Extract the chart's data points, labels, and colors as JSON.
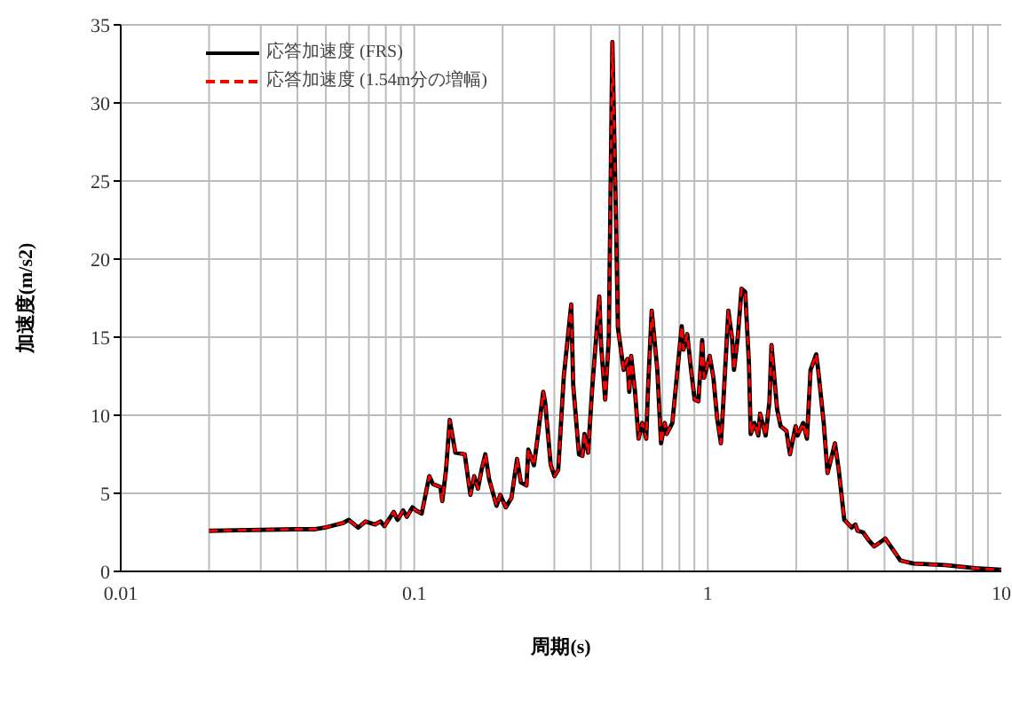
{
  "chart_data": {
    "type": "line",
    "xlabel": "周期(s)",
    "ylabel": "加速度(m/s2)",
    "log": "x",
    "grid": true,
    "legend": "top left",
    "marker": "none",
    "xlim": [
      0.01,
      10
    ],
    "xticks": [
      0.01,
      0.1,
      1,
      10
    ],
    "ylim": [
      0,
      35
    ],
    "yticks": [
      0,
      5,
      10,
      15,
      20,
      25,
      30,
      35
    ],
    "x": [
      0.02,
      0.0397,
      0.046,
      0.0495,
      0.0573,
      0.0598,
      0.0644,
      0.0683,
      0.0735,
      0.0768,
      0.0791,
      0.0851,
      0.0877,
      0.0916,
      0.0944,
      0.0986,
      0.1015,
      0.106,
      0.1125,
      0.1158,
      0.1228,
      0.1246,
      0.1283,
      0.1321,
      0.138,
      0.1486,
      0.1553,
      0.16,
      0.1648,
      0.1695,
      0.1746,
      0.1799,
      0.1907,
      0.1963,
      0.2051,
      0.2143,
      0.224,
      0.2307,
      0.2411,
      0.2447,
      0.2557,
      0.2633,
      0.275,
      0.2793,
      0.2917,
      0.3004,
      0.3093,
      0.3232,
      0.3426,
      0.348,
      0.364,
      0.374,
      0.38,
      0.391,
      0.403,
      0.427,
      0.433,
      0.447,
      0.46,
      0.473,
      0.487,
      0.494,
      0.517,
      0.532,
      0.54,
      0.548,
      0.565,
      0.581,
      0.598,
      0.617,
      0.625,
      0.644,
      0.673,
      0.693,
      0.714,
      0.724,
      0.757,
      0.78,
      0.815,
      0.826,
      0.851,
      0.877,
      0.902,
      0.929,
      0.957,
      0.971,
      1.015,
      1.045,
      1.076,
      1.108,
      1.124,
      1.175,
      1.21,
      1.228,
      1.265,
      1.303,
      1.341,
      1.381,
      1.4,
      1.442,
      1.486,
      1.507,
      1.574,
      1.622,
      1.648,
      1.722,
      1.77,
      1.853,
      1.905,
      1.991,
      2.023,
      2.113,
      2.177,
      2.239,
      2.34,
      2.377,
      2.483,
      2.558,
      2.63,
      2.711,
      2.793,
      2.917,
      3.09,
      3.184,
      3.236,
      3.381,
      3.532,
      3.69,
      4.027,
      4.529,
      5.02,
      6.44,
      8.15,
      10
    ],
    "series": [
      {
        "name": "応答加速度 (FRS)",
        "color": "#000000",
        "line_style": "solid",
        "values": [
          2.6,
          2.7,
          2.7,
          2.8,
          3.1,
          3.3,
          2.8,
          3.2,
          3.0,
          3.2,
          2.9,
          3.8,
          3.3,
          3.9,
          3.5,
          4.1,
          3.9,
          3.7,
          6.1,
          5.6,
          5.4,
          4.5,
          6.5,
          9.7,
          7.6,
          7.5,
          4.9,
          6.1,
          5.3,
          6.5,
          7.5,
          5.9,
          4.2,
          4.9,
          4.1,
          4.7,
          7.2,
          5.7,
          5.5,
          7.8,
          6.8,
          8.6,
          11.5,
          10.8,
          6.8,
          6.1,
          6.5,
          12.5,
          17.1,
          11.9,
          7.5,
          7.4,
          8.8,
          7.6,
          11.5,
          17.6,
          14.5,
          11.0,
          14.9,
          33.9,
          22.3,
          15.6,
          12.9,
          13.6,
          11.5,
          13.8,
          11.5,
          8.5,
          9.5,
          8.5,
          11.5,
          16.7,
          12.9,
          8.2,
          9.5,
          8.8,
          9.5,
          12.0,
          15.7,
          14.2,
          15.2,
          12.9,
          11.0,
          10.9,
          14.8,
          12.4,
          13.8,
          12.4,
          9.8,
          8.2,
          10.1,
          16.7,
          14.9,
          12.9,
          15.0,
          18.1,
          17.9,
          13.3,
          8.8,
          9.5,
          8.7,
          10.1,
          8.7,
          10.9,
          14.5,
          10.4,
          9.3,
          9.0,
          7.5,
          9.3,
          8.7,
          9.5,
          8.5,
          12.9,
          13.9,
          12.9,
          9.5,
          6.3,
          7.2,
          8.2,
          6.5,
          3.3,
          2.8,
          3.0,
          2.6,
          2.5,
          2.0,
          1.6,
          2.1,
          0.7,
          0.5,
          0.4,
          0.2,
          0.1
        ]
      },
      {
        "name": "応答加速度 (1.54m分の増幅)",
        "color": "#ff0000",
        "line_style": "dashed",
        "values": [
          2.6,
          2.7,
          2.7,
          2.8,
          3.1,
          3.3,
          2.8,
          3.2,
          3.0,
          3.2,
          2.9,
          3.8,
          3.3,
          3.9,
          3.5,
          4.1,
          3.9,
          3.7,
          6.1,
          5.6,
          5.4,
          4.5,
          6.5,
          9.7,
          7.6,
          7.5,
          4.9,
          6.1,
          5.3,
          6.5,
          7.5,
          5.9,
          4.2,
          4.9,
          4.1,
          4.7,
          7.2,
          5.7,
          5.5,
          7.8,
          6.8,
          8.6,
          11.5,
          10.8,
          6.8,
          6.1,
          6.5,
          12.5,
          17.1,
          11.9,
          7.5,
          7.4,
          8.8,
          7.6,
          11.5,
          17.6,
          14.5,
          11.0,
          14.9,
          33.9,
          22.3,
          15.6,
          12.9,
          13.6,
          11.5,
          13.8,
          11.5,
          8.5,
          9.5,
          8.5,
          11.5,
          16.7,
          12.9,
          8.2,
          9.5,
          8.8,
          9.5,
          12.0,
          15.7,
          14.2,
          15.2,
          12.9,
          11.0,
          10.9,
          14.8,
          12.4,
          13.8,
          12.4,
          9.8,
          8.2,
          10.1,
          16.7,
          14.9,
          12.9,
          15.0,
          18.1,
          17.9,
          13.3,
          8.8,
          9.5,
          8.7,
          10.1,
          8.7,
          10.9,
          14.5,
          10.4,
          9.3,
          9.0,
          7.5,
          9.3,
          8.7,
          9.5,
          8.5,
          12.9,
          13.9,
          12.9,
          9.5,
          6.3,
          7.2,
          8.2,
          6.5,
          3.3,
          2.8,
          3.0,
          2.6,
          2.5,
          2.0,
          1.6,
          2.1,
          0.7,
          0.5,
          0.4,
          0.2,
          0.1
        ]
      }
    ]
  }
}
